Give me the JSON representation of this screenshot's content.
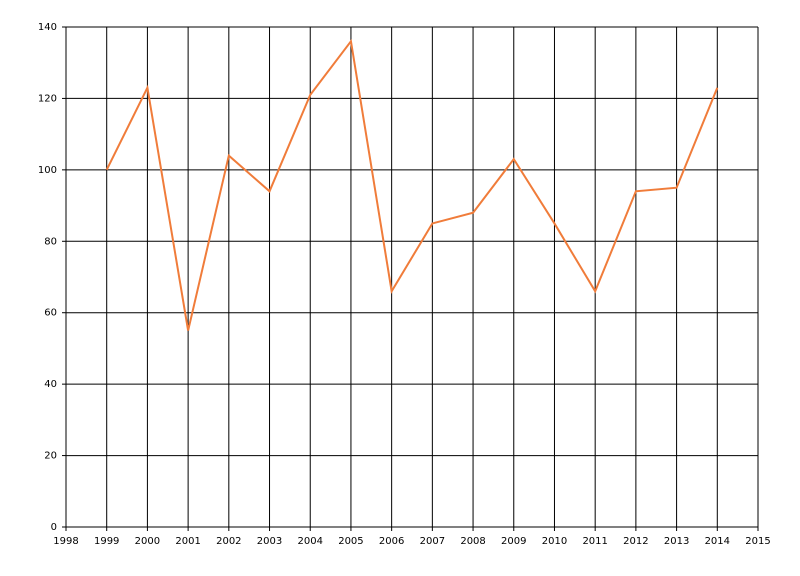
{
  "chart_data": {
    "type": "line",
    "x": [
      1999,
      2000,
      2001,
      2002,
      2003,
      2004,
      2005,
      2006,
      2007,
      2008,
      2009,
      2010,
      2011,
      2012,
      2013,
      2014
    ],
    "series": [
      {
        "color": "#f07c3a",
        "values": [
          100,
          123,
          55,
          104,
          94,
          121,
          136,
          66,
          85,
          88,
          103,
          85,
          66,
          94,
          95,
          123
        ]
      }
    ],
    "xlim": [
      1998,
      2015
    ],
    "xticks": [
      1998,
      1999,
      2000,
      2001,
      2002,
      2003,
      2004,
      2005,
      2006,
      2007,
      2008,
      2009,
      2010,
      2011,
      2012,
      2013,
      2014,
      2015
    ],
    "ylim": [
      0,
      140
    ],
    "yticks": [
      0,
      20,
      40,
      60,
      80,
      100,
      120,
      140
    ],
    "grid": true
  }
}
